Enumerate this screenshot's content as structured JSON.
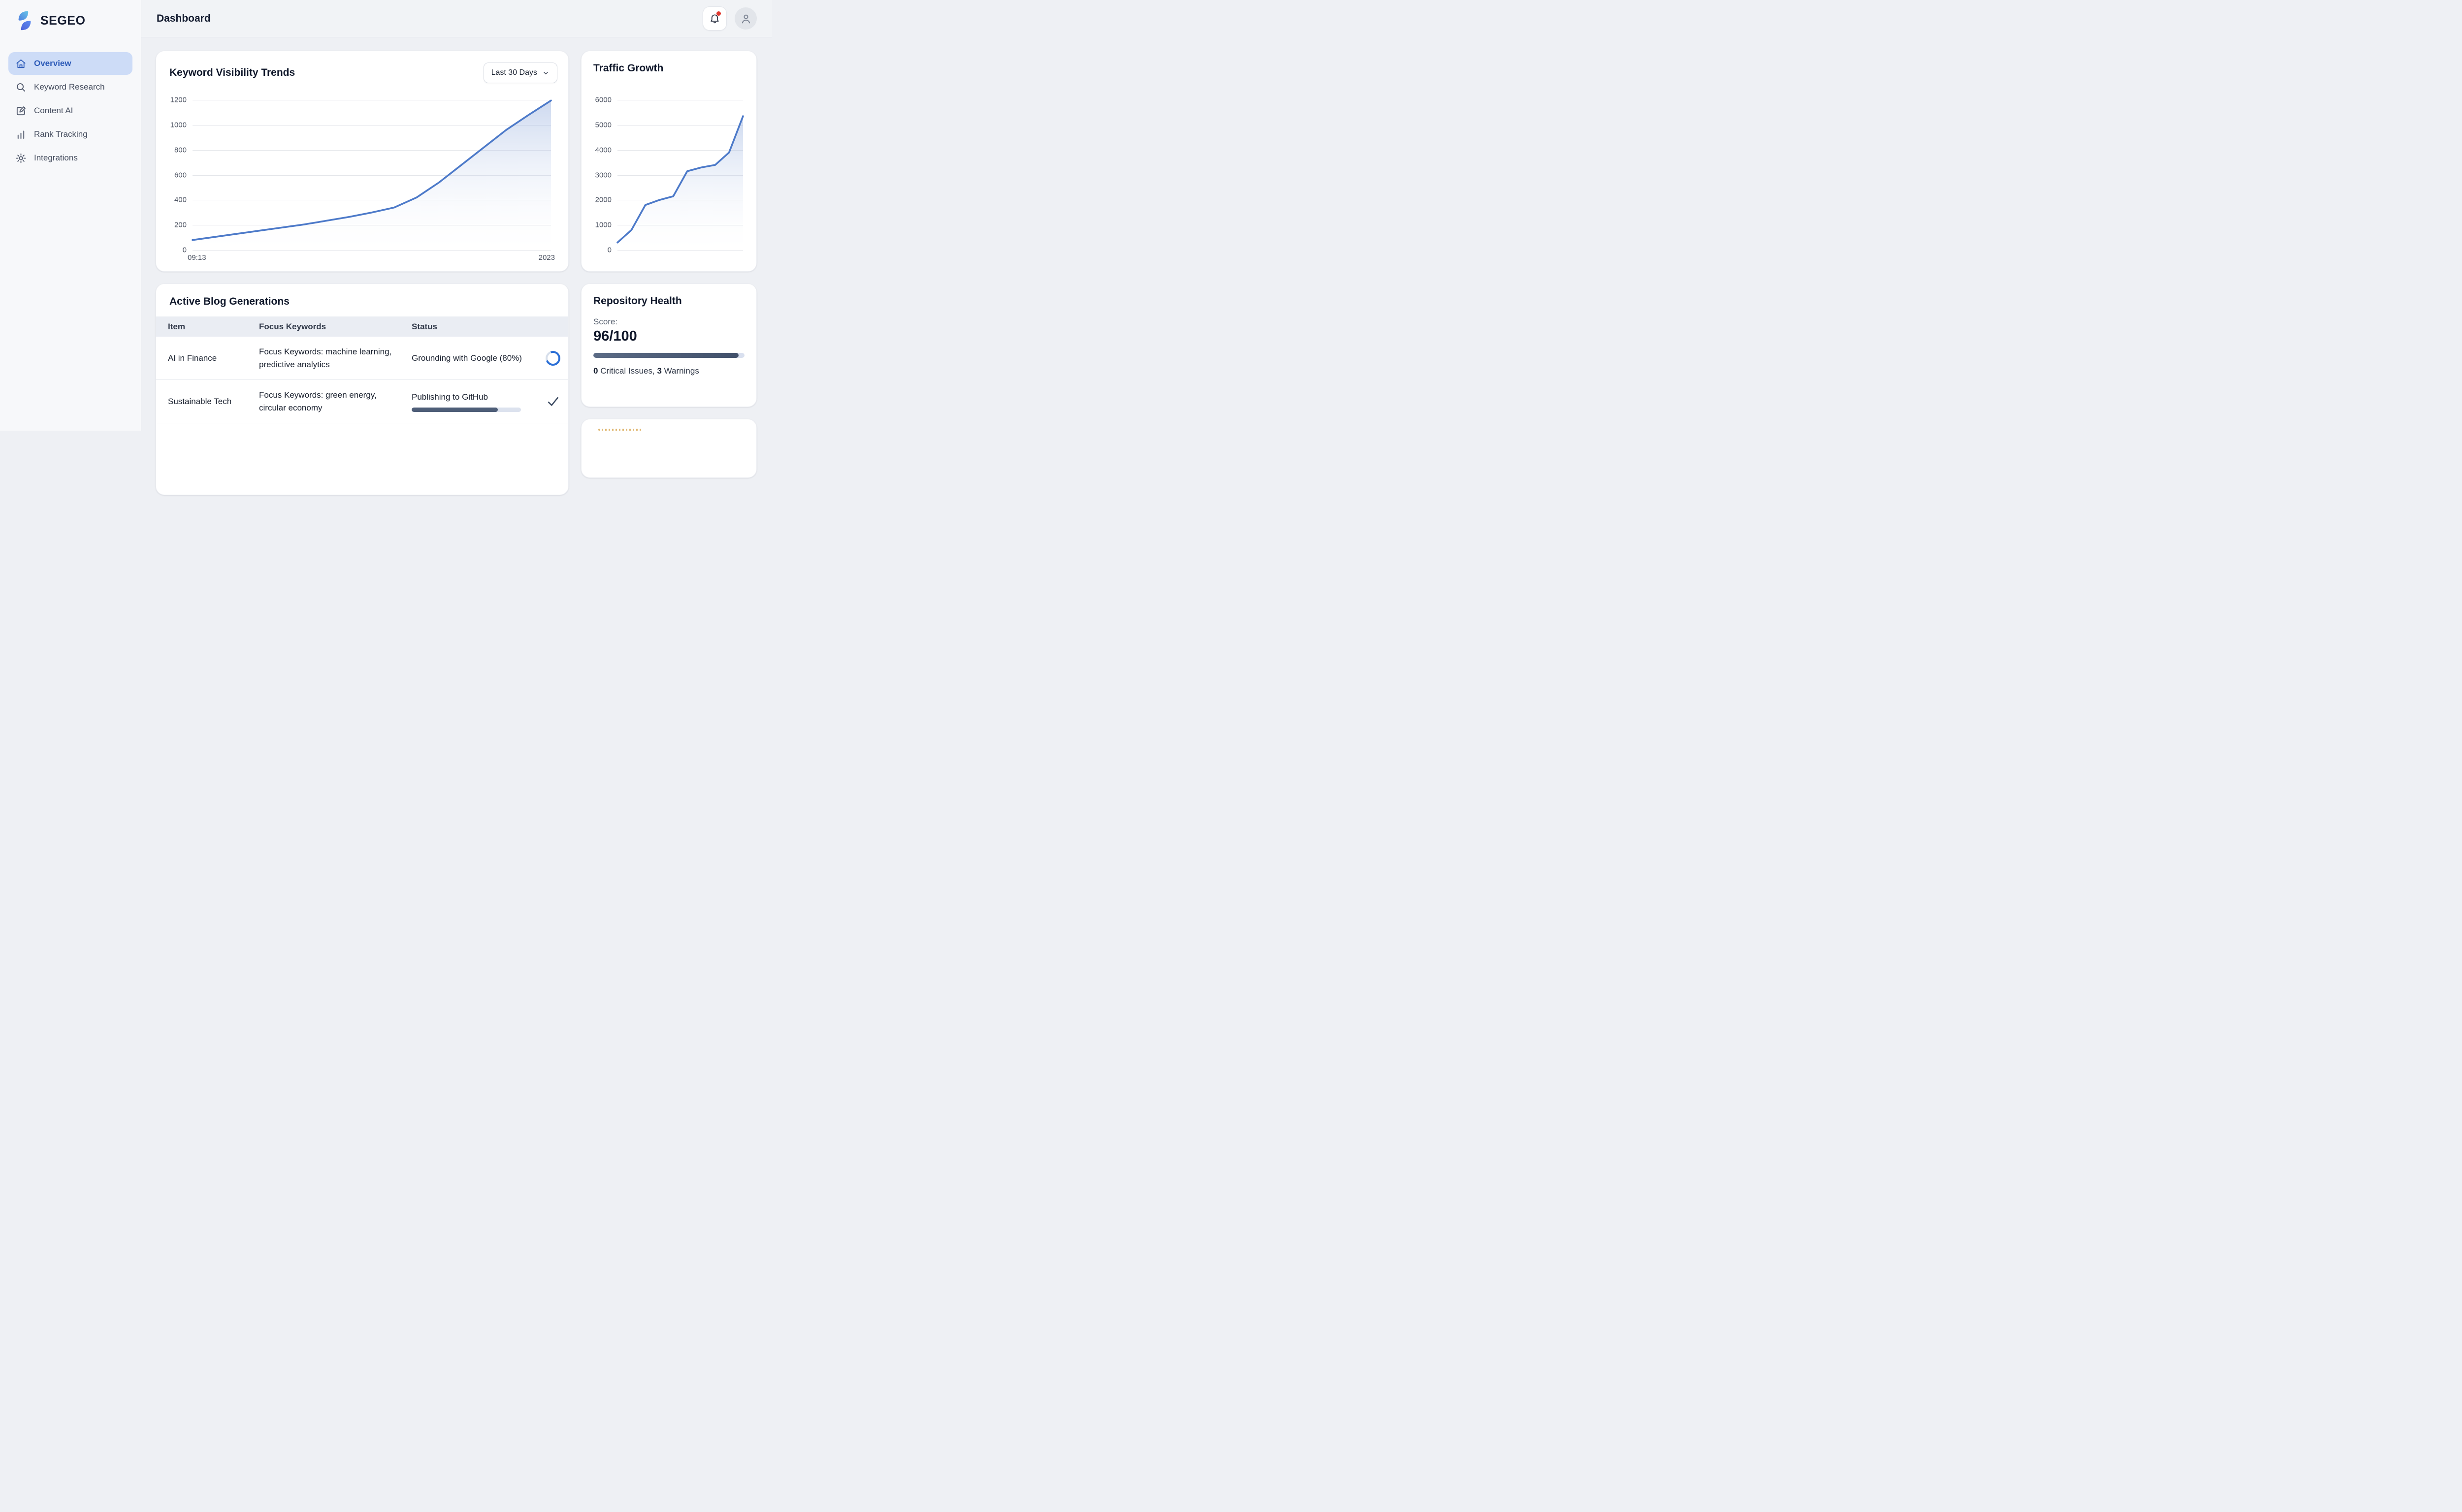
{
  "app": {
    "brand": "SEGEO"
  },
  "header": {
    "title": "Dashboard"
  },
  "sidebar": {
    "items": [
      {
        "label": "Overview",
        "icon": "home-icon",
        "active": true
      },
      {
        "label": "Keyword Research",
        "icon": "search-icon",
        "active": false
      },
      {
        "label": "Content AI",
        "icon": "edit-icon",
        "active": false
      },
      {
        "label": "Rank Tracking",
        "icon": "bar-chart-icon",
        "active": false
      },
      {
        "label": "Integrations",
        "icon": "gear-icon",
        "active": false
      }
    ]
  },
  "visibility_card": {
    "title": "Keyword Visibility Trends",
    "range_button": "Last 30 Days"
  },
  "traffic_card": {
    "title": "Traffic Growth"
  },
  "chart_data": [
    {
      "id": "visibility",
      "type": "area",
      "title": "Keyword Visibility Trends",
      "x_labels": {
        "left": "09:13",
        "right": "2023"
      },
      "y_ticks": [
        0,
        200,
        400,
        600,
        800,
        1000,
        1200
      ],
      "ylim": [
        0,
        1200
      ],
      "values": [
        80,
        105,
        130,
        155,
        180,
        205,
        235,
        265,
        300,
        340,
        420,
        540,
        680,
        820,
        960,
        1080,
        1195
      ],
      "line_color": "#4d7ac9",
      "grid": true,
      "legend": false
    },
    {
      "id": "traffic",
      "type": "area",
      "title": "Traffic Growth",
      "x_labels": {
        "left": "",
        "right": ""
      },
      "y_ticks": [
        0,
        1000,
        2000,
        3000,
        4000,
        5000,
        6000
      ],
      "ylim": [
        0,
        6000
      ],
      "values": [
        300,
        800,
        1800,
        2000,
        2150,
        3150,
        3300,
        3400,
        3900,
        5350
      ],
      "line_color": "#4d7ac9",
      "grid": true,
      "legend": false
    }
  ],
  "blog_card": {
    "title": "Active Blog Generations",
    "columns": [
      "Item",
      "Focus Keywords",
      "Status"
    ],
    "rows": [
      {
        "item": "AI in Finance",
        "keywords": "Focus Keywords: machine learning, predictive analytics",
        "status": "Grounding with Google (80%)",
        "indicator": "spinner-icon",
        "progress": null
      },
      {
        "item": "Sustainable Tech",
        "keywords": "Focus Keywords: green energy, circular economy",
        "status": "Publishing to GitHub",
        "indicator": "check-icon",
        "progress": 79
      }
    ]
  },
  "repo_card": {
    "title": "Repository Health",
    "score_label": "Score:",
    "score": "96/100",
    "progress_pct": 96,
    "issues": {
      "critical_count": "0",
      "critical_text": " Critical Issues, ",
      "warning_count": "3",
      "warning_text": " Warnings"
    }
  },
  "colors": {
    "accent_blue": "#2d5bb8",
    "active_pill": "#cddcf7",
    "chart_line": "#4d7ac9",
    "progress_fill": "#4e5e78",
    "notification_dot": "#e0392f",
    "spinner_blue": "#2b6fd6",
    "check_slate": "#3e4c63"
  }
}
